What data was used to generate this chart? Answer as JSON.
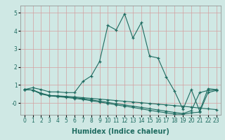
{
  "xlabel": "Humidex (Indice chaleur)",
  "xlim": [
    -0.5,
    23.5
  ],
  "ylim": [
    -0.65,
    5.4
  ],
  "bg_color": "#cfe8e4",
  "line_color": "#1e6b60",
  "grid_color": "#d4a0a0",
  "x": [
    0,
    1,
    2,
    3,
    4,
    5,
    6,
    7,
    8,
    9,
    10,
    11,
    12,
    13,
    14,
    15,
    16,
    17,
    18,
    19,
    20,
    21,
    22,
    23
  ],
  "line1": [
    0.75,
    0.85,
    0.75,
    0.62,
    0.62,
    0.58,
    0.58,
    1.2,
    1.5,
    2.3,
    4.3,
    4.05,
    4.95,
    3.6,
    4.45,
    2.6,
    2.5,
    1.45,
    0.65,
    -0.35,
    0.75,
    -0.45,
    0.8,
    0.75
  ],
  "line2": [
    0.75,
    0.72,
    0.55,
    0.42,
    0.4,
    0.37,
    0.34,
    0.3,
    0.26,
    0.22,
    0.18,
    0.14,
    0.1,
    0.06,
    0.02,
    -0.02,
    -0.06,
    -0.1,
    -0.14,
    -0.18,
    -0.22,
    -0.28,
    -0.32,
    -0.36
  ],
  "line3": [
    0.75,
    0.72,
    0.52,
    0.42,
    0.38,
    0.34,
    0.3,
    0.25,
    0.18,
    0.11,
    0.04,
    -0.04,
    -0.1,
    -0.17,
    -0.24,
    -0.31,
    -0.38,
    -0.45,
    -0.52,
    -0.58,
    -0.42,
    0.58,
    0.7,
    0.72
  ],
  "line4": [
    0.75,
    0.72,
    0.5,
    0.4,
    0.36,
    0.31,
    0.26,
    0.2,
    0.13,
    0.06,
    -0.02,
    -0.1,
    -0.17,
    -0.24,
    -0.32,
    -0.4,
    -0.47,
    -0.54,
    -0.61,
    -0.62,
    -0.54,
    -0.5,
    0.58,
    0.7
  ],
  "xticks": [
    0,
    1,
    2,
    3,
    4,
    5,
    6,
    7,
    8,
    9,
    10,
    11,
    12,
    13,
    14,
    15,
    16,
    17,
    18,
    19,
    20,
    21,
    22,
    23
  ],
  "yticks": [
    0,
    1,
    2,
    3,
    4,
    5
  ],
  "ytick_labels": [
    "-0",
    "1",
    "2",
    "3",
    "4",
    "5"
  ],
  "fontsize_label": 7.0,
  "fontsize_tick": 5.5
}
